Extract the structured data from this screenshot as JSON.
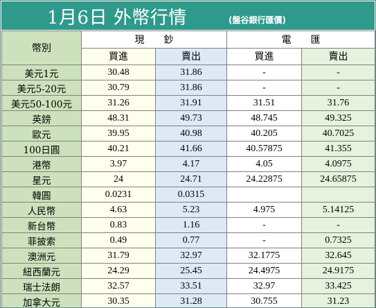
{
  "title": {
    "main": "1月6日 外幣行情",
    "sub": "(盤谷銀行匯價)"
  },
  "header": {
    "currency": "幣別",
    "banknote": "現　　鈔",
    "wire": "電　　匯",
    "buy": "買進",
    "sell": "賣出"
  },
  "rows": [
    {
      "currency": "美元1元",
      "bn_buy": "30.48",
      "bn_sell": "31.86",
      "wire_buy": "-",
      "wire_sell": "-"
    },
    {
      "currency": "美元5-20元",
      "bn_buy": "30.79",
      "bn_sell": "31.86",
      "wire_buy": "-",
      "wire_sell": "-"
    },
    {
      "currency": "美元50-100元",
      "bn_buy": "31.26",
      "bn_sell": "31.91",
      "wire_buy": "31.51",
      "wire_sell": "31.76"
    },
    {
      "currency": "英鎊",
      "bn_buy": "48.31",
      "bn_sell": "49.73",
      "wire_buy": "48.745",
      "wire_sell": "49.325"
    },
    {
      "currency": "歐元",
      "bn_buy": "39.95",
      "bn_sell": "40.98",
      "wire_buy": "40.205",
      "wire_sell": "40.7025"
    },
    {
      "currency": "100日圓",
      "bn_buy": "40.21",
      "bn_sell": "41.66",
      "wire_buy": "40.57875",
      "wire_sell": "41.355"
    },
    {
      "currency": "港幣",
      "bn_buy": "3.97",
      "bn_sell": "4.17",
      "wire_buy": "4.05",
      "wire_sell": "4.0975"
    },
    {
      "currency": "星元",
      "bn_buy": "24",
      "bn_sell": "24.71",
      "wire_buy": "24.22875",
      "wire_sell": "24.65875"
    },
    {
      "currency": "韓圓",
      "bn_buy": "0.0231",
      "bn_sell": "0.0315",
      "wire_buy": "",
      "wire_sell": ""
    },
    {
      "currency": "人民幣",
      "bn_buy": "4.63",
      "bn_sell": "5.23",
      "wire_buy": "4.975",
      "wire_sell": "5.14125"
    },
    {
      "currency": "新台幣",
      "bn_buy": "0.83",
      "bn_sell": "1.16",
      "wire_buy": "-",
      "wire_sell": "-"
    },
    {
      "currency": "菲披索",
      "bn_buy": "0.49",
      "bn_sell": "0.77",
      "wire_buy": "-",
      "wire_sell": "0.7325"
    },
    {
      "currency": "澳洲元",
      "bn_buy": "31.79",
      "bn_sell": "32.97",
      "wire_buy": "32.1775",
      "wire_sell": "32.645"
    },
    {
      "currency": "紐西蘭元",
      "bn_buy": "24.29",
      "bn_sell": "25.45",
      "wire_buy": "24.4975",
      "wire_sell": "24.9175"
    },
    {
      "currency": "瑞士法朗",
      "bn_buy": "32.57",
      "bn_sell": "33.51",
      "wire_buy": "32.97",
      "wire_sell": "33.425"
    },
    {
      "currency": "加拿大元",
      "bn_buy": "30.35",
      "bn_sell": "31.28",
      "wire_buy": "30.755",
      "wire_sell": "31.23"
    }
  ],
  "colors": {
    "title_bg": "#2f9a8c",
    "currency_col": "#cde2bc",
    "banknote_buy": "#ffffee",
    "banknote_sell": "#dde9f6",
    "wire_buy": "#ffffff",
    "wire_sell": "#e6f2dd"
  }
}
